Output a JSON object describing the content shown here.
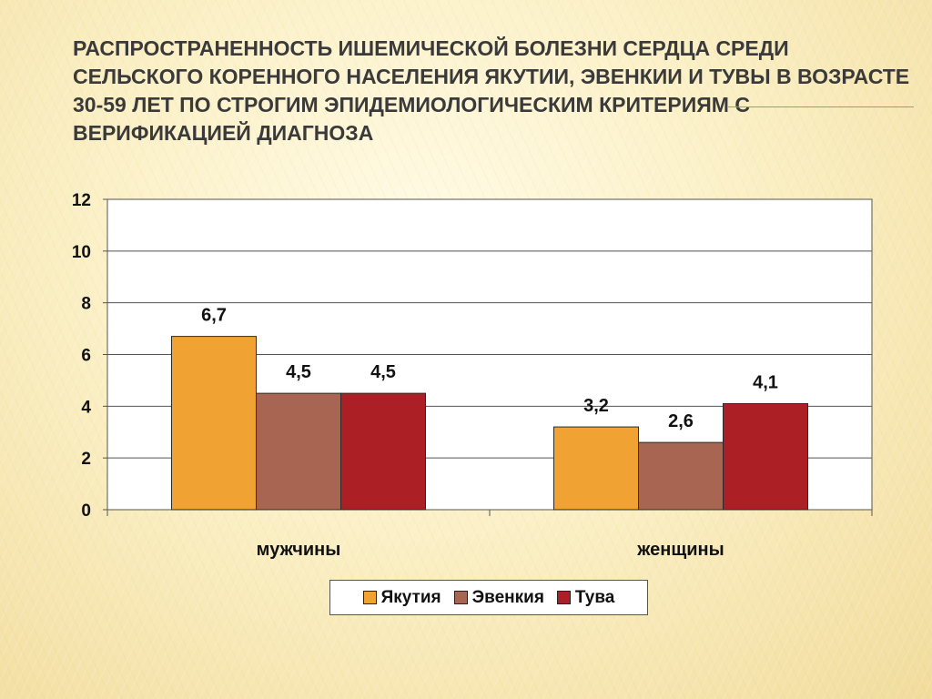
{
  "slide": {
    "title": "Распространенность  ишемической болезни сердца среди  сельского коренного населения Якутии, Эвенкии и Тувы в возрасте 30-59 лет по строгим эпидемиологическим критериям с верификацией диагноза"
  },
  "chart_data": {
    "type": "bar",
    "categories": [
      "мужчины",
      "женщины"
    ],
    "series": [
      {
        "name": "Якутия",
        "values": [
          6.7,
          3.2
        ],
        "labels": [
          "6,7",
          "3,2"
        ],
        "color": "#f0a332"
      },
      {
        "name": "Эвенкия",
        "values": [
          4.5,
          2.6
        ],
        "labels": [
          "4,5",
          "2,6"
        ],
        "color": "#a86652"
      },
      {
        "name": "Тува",
        "values": [
          4.5,
          4.1
        ],
        "labels": [
          "4,5",
          "4,1"
        ],
        "color": "#ac1f24"
      }
    ],
    "y_ticks": [
      0,
      2,
      4,
      6,
      8,
      10,
      12
    ],
    "ylim": [
      0,
      12
    ],
    "grid": true,
    "legend": "bottom"
  }
}
